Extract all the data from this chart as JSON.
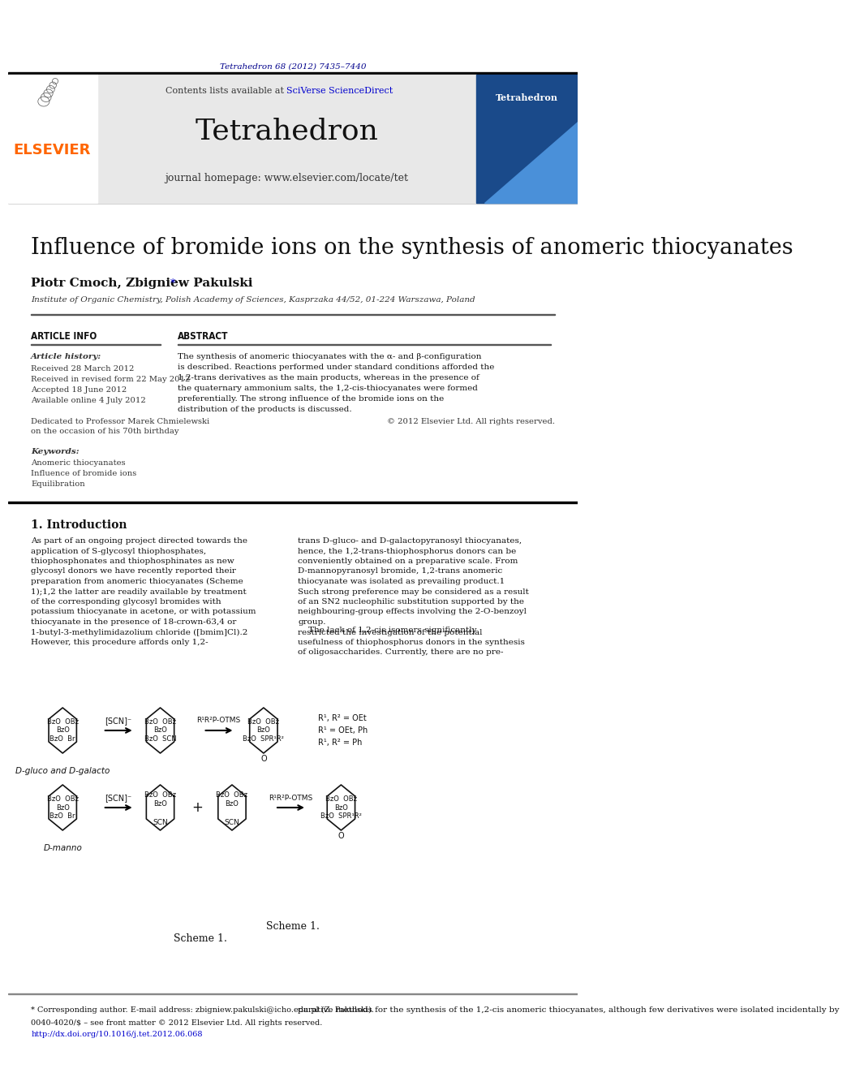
{
  "page_bg": "#ffffff",
  "header_citation": "Tetrahedron 68 (2012) 7435–7440",
  "header_citation_color": "#00008B",
  "journal_header_bg": "#e8e8e8",
  "journal_name": "Tetrahedron",
  "journal_homepage": "journal homepage: www.elsevier.com/locate/tet",
  "contents_text": "Contents lists available at ",
  "sciverse_text": "SciVerse ScienceDirect",
  "sciverse_color": "#0000CD",
  "elsevier_color": "#FF6600",
  "elsevier_text": "ELSEVIER",
  "paper_title": "Influence of bromide ions on the synthesis of anomeric thiocyanates",
  "authors": "Piotr Cmoch, Zbigniew Pakulski",
  "author_asterisk": "*",
  "affiliation": "Institute of Organic Chemistry, Polish Academy of Sciences, Kasprzaka 44/52, 01-224 Warszawa, Poland",
  "article_info_header": "ARTICLE INFO",
  "abstract_header": "ABSTRACT",
  "article_history_label": "Article history:",
  "received_text": "Received 28 March 2012",
  "revised_text": "Received in revised form 22 May 2012",
  "accepted_text": "Accepted 18 June 2012",
  "available_text": "Available online 4 July 2012",
  "dedicated_text": "Dedicated to Professor Marek Chmielewski\non the occasion of his 70th birthday",
  "keywords_label": "Keywords:",
  "keyword1": "Anomeric thiocyanates",
  "keyword2": "Influence of bromide ions",
  "keyword3": "Equilibration",
  "abstract_text": "The synthesis of anomeric thiocyanates with the α- and β-configuration is described. Reactions performed under standard conditions afforded the 1,2-trans derivatives as the main products, whereas in the presence of the quaternary ammonium salts, the 1,2-cis-thiocyanates were formed preferentially. The strong influence of the bromide ions on the distribution of the products is discussed.",
  "copyright_text": "© 2012 Elsevier Ltd. All rights reserved.",
  "intro_header": "1. Introduction",
  "intro_col1": "As part of an ongoing project directed towards the application of S-glycosyl thiophosphates, thiophosphonates and thiophosphinates as new glycosyl donors we have recently reported their preparation from anomeric thiocyanates (Scheme 1);1,2 the latter are readily available by treatment of the corresponding glycosyl bromides with potassium thiocyanate in acetone, or with potassium thiocyanate in the presence of 18-crown-63,4 or 1-butyl-3-methylimidazolium chloride ([bmim]Cl).2 However, this procedure affords only 1,2-",
  "intro_col2": "trans D-gluco- and D-galactopyranosyl thiocyanates, hence, the 1,2-trans-thiophosphorus donors can be conveniently obtained on a preparative scale. From D-mannopyranosyl bromide, 1,2-trans anomeric thiocyanate was isolated as prevailing product.1 Such strong preference may be considered as a result of an SN2 nucleophilic substitution supported by the neighbouring-group effects involving the 2-O-benzoyl group.\n    The lack of 1,2-cis isomers significantly restricted the investigation of the potential usefulness of thiophosphorus donors in the synthesis of oligosaccharides. Currently, there are no pre-",
  "scheme_label": "Scheme 1.",
  "footer_corresponding": "* Corresponding author. E-mail address: zbigniew.pakulski@icho.edu.pl (Z. Pakulski).",
  "footer_col2": "parative methods for the synthesis of the 1,2-cis anomeric thiocyanates, although few derivatives were isolated incidentally by",
  "footer_issn": "0040-4020/$ – see front matter © 2012 Elsevier Ltd. All rights reserved.",
  "footer_doi": "http://dx.doi.org/10.1016/j.tet.2012.06.068"
}
